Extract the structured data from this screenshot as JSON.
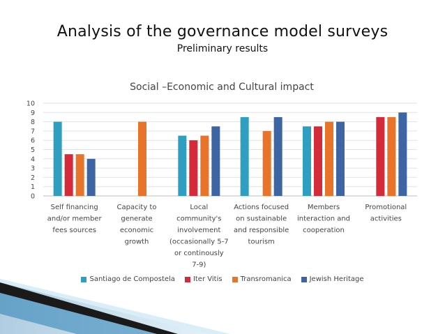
{
  "slide": {
    "title": "Analysis of the governance model surveys",
    "subtitle": "Preliminary results"
  },
  "chart_data": {
    "type": "bar",
    "title": "Social –Economic and Cultural impact",
    "ylim": [
      0,
      10
    ],
    "yticks": [
      0,
      1,
      2,
      3,
      4,
      5,
      6,
      7,
      8,
      9,
      10
    ],
    "grid": true,
    "legend_position": "bottom",
    "categories": [
      [
        "Self financing",
        "and/or member",
        "fees sources"
      ],
      [
        "Capacity to",
        "generate",
        "economic",
        "growth"
      ],
      [
        "Local",
        "community's",
        "involvement",
        "(occasionally 5-7",
        "or continously",
        "7-9)"
      ],
      [
        "Actions focused",
        "on sustainable",
        "and responsible",
        "tourism"
      ],
      [
        "Members",
        "interaction and",
        "cooperation"
      ],
      [
        "Promotional",
        "activities"
      ]
    ],
    "series": [
      {
        "name": "Santiago de Compostela",
        "color": "#2e9fc0",
        "values": [
          8,
          null,
          6.5,
          8.5,
          7.5,
          null
        ]
      },
      {
        "name": "Iter Vitis",
        "color": "#d42a3a",
        "values": [
          4.5,
          null,
          6,
          null,
          7.5,
          8.5
        ]
      },
      {
        "name": "Transromanica",
        "color": "#e8732b",
        "values": [
          4.5,
          8,
          6.5,
          7,
          8,
          8.5
        ]
      },
      {
        "name": "Jewish Heritage",
        "color": "#3d64a3",
        "values": [
          4,
          null,
          7.5,
          8.5,
          8,
          9
        ]
      }
    ]
  }
}
